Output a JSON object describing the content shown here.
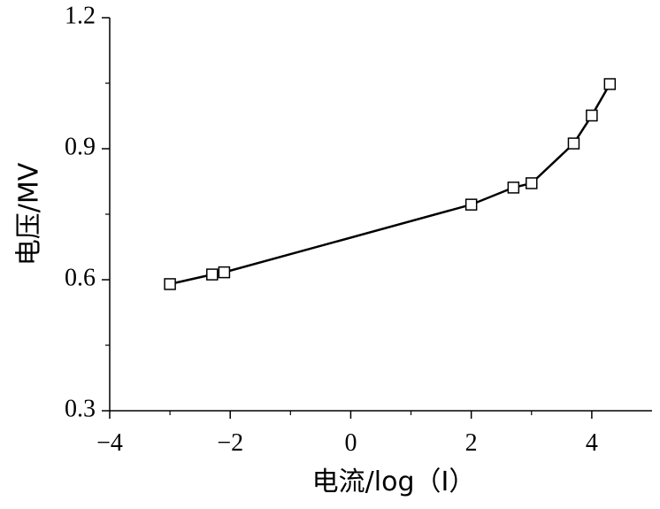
{
  "chart_data": {
    "type": "line",
    "title": "",
    "xlabel": "电流/log（I）",
    "ylabel": "电压/MV",
    "xlim": [
      -4,
      5
    ],
    "ylim": [
      0.3,
      1.2
    ],
    "x_ticks": [
      -4,
      -2,
      0,
      2,
      4
    ],
    "y_ticks": [
      0.3,
      0.6,
      0.9,
      1.2
    ],
    "x_tick_labels": [
      "−4",
      "−2",
      "0",
      "2",
      "4"
    ],
    "y_tick_labels": [
      "0.3",
      "0.6",
      "0.9",
      "1.2"
    ],
    "grid": false,
    "marker": "open-square",
    "line_color": "#000000",
    "series": [
      {
        "x": [
          -3.0,
          -2.3,
          -2.1,
          2.0,
          2.7,
          3.0,
          3.7,
          4.0,
          4.3
        ],
        "y": [
          0.59,
          0.612,
          0.617,
          0.772,
          0.811,
          0.821,
          0.912,
          0.976,
          1.048
        ]
      }
    ]
  }
}
